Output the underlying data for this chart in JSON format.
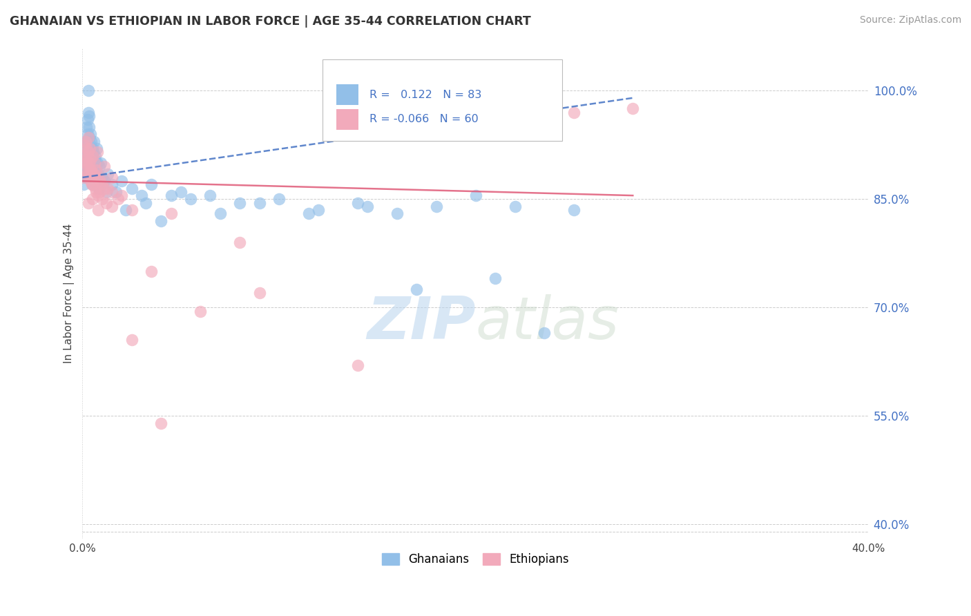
{
  "title": "GHANAIAN VS ETHIOPIAN IN LABOR FORCE | AGE 35-44 CORRELATION CHART",
  "source": "Source: ZipAtlas.com",
  "ylabel": "In Labor Force | Age 35-44",
  "y_ticks": [
    40.0,
    55.0,
    70.0,
    85.0,
    100.0
  ],
  "x_lim": [
    0.0,
    40.0
  ],
  "y_lim": [
    38.0,
    106.0
  ],
  "blue_R": 0.122,
  "blue_N": 83,
  "pink_R": -0.066,
  "pink_N": 60,
  "blue_color": "#92BFE8",
  "pink_color": "#F2AABB",
  "blue_line_color": "#4472C4",
  "pink_line_color": "#E05A78",
  "text_color": "#4472C4",
  "grid_color": "#CCCCCC",
  "blue_trend": [
    0.0,
    28.0,
    88.0,
    99.0
  ],
  "pink_trend": [
    0.0,
    28.0,
    87.5,
    85.5
  ],
  "blue_x": [
    0.05,
    0.07,
    0.08,
    0.1,
    0.1,
    0.12,
    0.13,
    0.15,
    0.15,
    0.17,
    0.18,
    0.2,
    0.2,
    0.22,
    0.25,
    0.25,
    0.27,
    0.28,
    0.3,
    0.3,
    0.32,
    0.33,
    0.35,
    0.35,
    0.38,
    0.4,
    0.4,
    0.42,
    0.43,
    0.45,
    0.45,
    0.47,
    0.48,
    0.5,
    0.5,
    0.52,
    0.55,
    0.55,
    0.57,
    0.6,
    0.62,
    0.65,
    0.7,
    0.72,
    0.75,
    0.8,
    0.82,
    0.85,
    0.9,
    0.95,
    1.0,
    1.1,
    1.2,
    1.3,
    1.5,
    1.7,
    2.0,
    2.5,
    3.0,
    3.5,
    4.5,
    5.0,
    6.5,
    8.0,
    10.0,
    12.0,
    14.0,
    16.0,
    18.0,
    20.0,
    22.0,
    25.0,
    2.2,
    3.2,
    4.0,
    5.5,
    7.0,
    9.0,
    11.5,
    14.5,
    17.0,
    21.0,
    23.5
  ],
  "blue_y": [
    87.0,
    90.0,
    88.5,
    92.0,
    89.0,
    91.0,
    93.0,
    90.0,
    92.5,
    89.0,
    91.0,
    93.0,
    95.0,
    88.0,
    94.0,
    96.0,
    91.0,
    89.0,
    97.0,
    100.0,
    95.0,
    92.0,
    93.5,
    96.5,
    91.5,
    94.0,
    89.5,
    92.5,
    90.0,
    93.0,
    91.0,
    88.5,
    90.5,
    92.0,
    89.5,
    87.0,
    91.5,
    89.0,
    93.0,
    90.5,
    88.0,
    91.0,
    89.0,
    92.0,
    90.0,
    88.5,
    86.5,
    89.5,
    87.5,
    90.0,
    88.0,
    87.5,
    86.0,
    88.5,
    87.0,
    86.0,
    87.5,
    86.5,
    85.5,
    87.0,
    85.5,
    86.0,
    85.5,
    84.5,
    85.0,
    83.5,
    84.5,
    83.0,
    84.0,
    85.5,
    84.0,
    83.5,
    83.5,
    84.5,
    82.0,
    85.0,
    83.0,
    84.5,
    83.0,
    84.0,
    72.5,
    74.0,
    66.5
  ],
  "pink_x": [
    0.05,
    0.07,
    0.1,
    0.12,
    0.15,
    0.17,
    0.2,
    0.22,
    0.25,
    0.27,
    0.3,
    0.32,
    0.35,
    0.38,
    0.4,
    0.42,
    0.45,
    0.48,
    0.5,
    0.55,
    0.6,
    0.65,
    0.7,
    0.75,
    0.8,
    0.85,
    0.9,
    1.0,
    1.1,
    1.3,
    1.5,
    1.8,
    0.2,
    0.3,
    0.4,
    0.5,
    0.6,
    0.7,
    0.8,
    0.9,
    1.0,
    1.2,
    1.5,
    2.0,
    2.5,
    3.5,
    4.5,
    6.0,
    9.0,
    14.0,
    25.0,
    28.0,
    0.3,
    0.5,
    0.8,
    1.1,
    1.5,
    2.5,
    4.0,
    8.0
  ],
  "pink_y": [
    88.0,
    91.0,
    92.5,
    89.0,
    93.0,
    90.5,
    92.0,
    88.5,
    91.0,
    89.5,
    93.5,
    90.0,
    88.0,
    92.0,
    87.5,
    90.5,
    89.0,
    87.0,
    91.0,
    88.5,
    90.0,
    86.5,
    89.0,
    91.5,
    87.5,
    86.0,
    88.0,
    87.0,
    89.5,
    86.5,
    88.0,
    85.0,
    90.0,
    91.5,
    89.0,
    87.0,
    88.5,
    86.0,
    85.5,
    87.5,
    85.0,
    84.5,
    86.0,
    85.5,
    65.5,
    75.0,
    83.0,
    69.5,
    72.0,
    62.0,
    97.0,
    97.5,
    84.5,
    85.0,
    83.5,
    86.5,
    84.0,
    83.5,
    54.0,
    79.0
  ]
}
